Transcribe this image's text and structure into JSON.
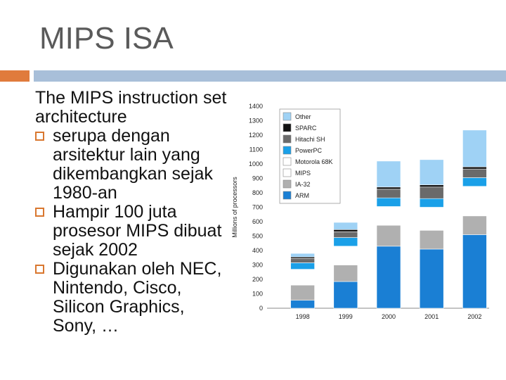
{
  "slide": {
    "title": "MIPS ISA",
    "intro": "The MIPS instruction set architecture",
    "bullets": [
      "serupa dengan arsitektur lain yang dikembangkan sejak 1980-an",
      "Hampir 100 juta prosesor MIPS dibuat sejak 2002",
      "Digunakan oleh NEC, Nintendo, Cisco, Silicon Graphics, Sony, …"
    ]
  },
  "chart_data": {
    "type": "bar",
    "stacked": true,
    "categories": [
      "1998",
      "1999",
      "2000",
      "2001",
      "2002"
    ],
    "ylabel": "Millions of processors",
    "ylim": [
      0,
      1400
    ],
    "yticks": [
      0,
      100,
      200,
      300,
      400,
      500,
      600,
      700,
      800,
      900,
      1000,
      1100,
      1200,
      1300,
      1400
    ],
    "legend_position": "top-left",
    "series": [
      {
        "name": "ARM",
        "color": "#1a7fd4",
        "values": [
          55,
          185,
          430,
          410,
          510
        ]
      },
      {
        "name": "IA-32",
        "color": "#b0b0b0",
        "values": [
          105,
          115,
          145,
          130,
          130
        ]
      },
      {
        "name": "MIPS",
        "color": "#ffffff",
        "values": [
          80,
          50,
          30,
          70,
          105
        ]
      },
      {
        "name": "Motorola 68K",
        "color": "#ffffff",
        "values": [
          30,
          80,
          100,
          90,
          100
        ]
      },
      {
        "name": "PowerPC",
        "color": "#1aa0e8",
        "values": [
          45,
          60,
          60,
          60,
          60
        ]
      },
      {
        "name": "Hitachi SH",
        "color": "#6a6a6a",
        "values": [
          30,
          40,
          60,
          80,
          60
        ]
      },
      {
        "name": "SPARC",
        "color": "#111111",
        "values": [
          10,
          15,
          15,
          15,
          15
        ]
      },
      {
        "name": "Other",
        "color": "#9fd2f5",
        "values": [
          25,
          50,
          180,
          175,
          255
        ]
      }
    ]
  }
}
